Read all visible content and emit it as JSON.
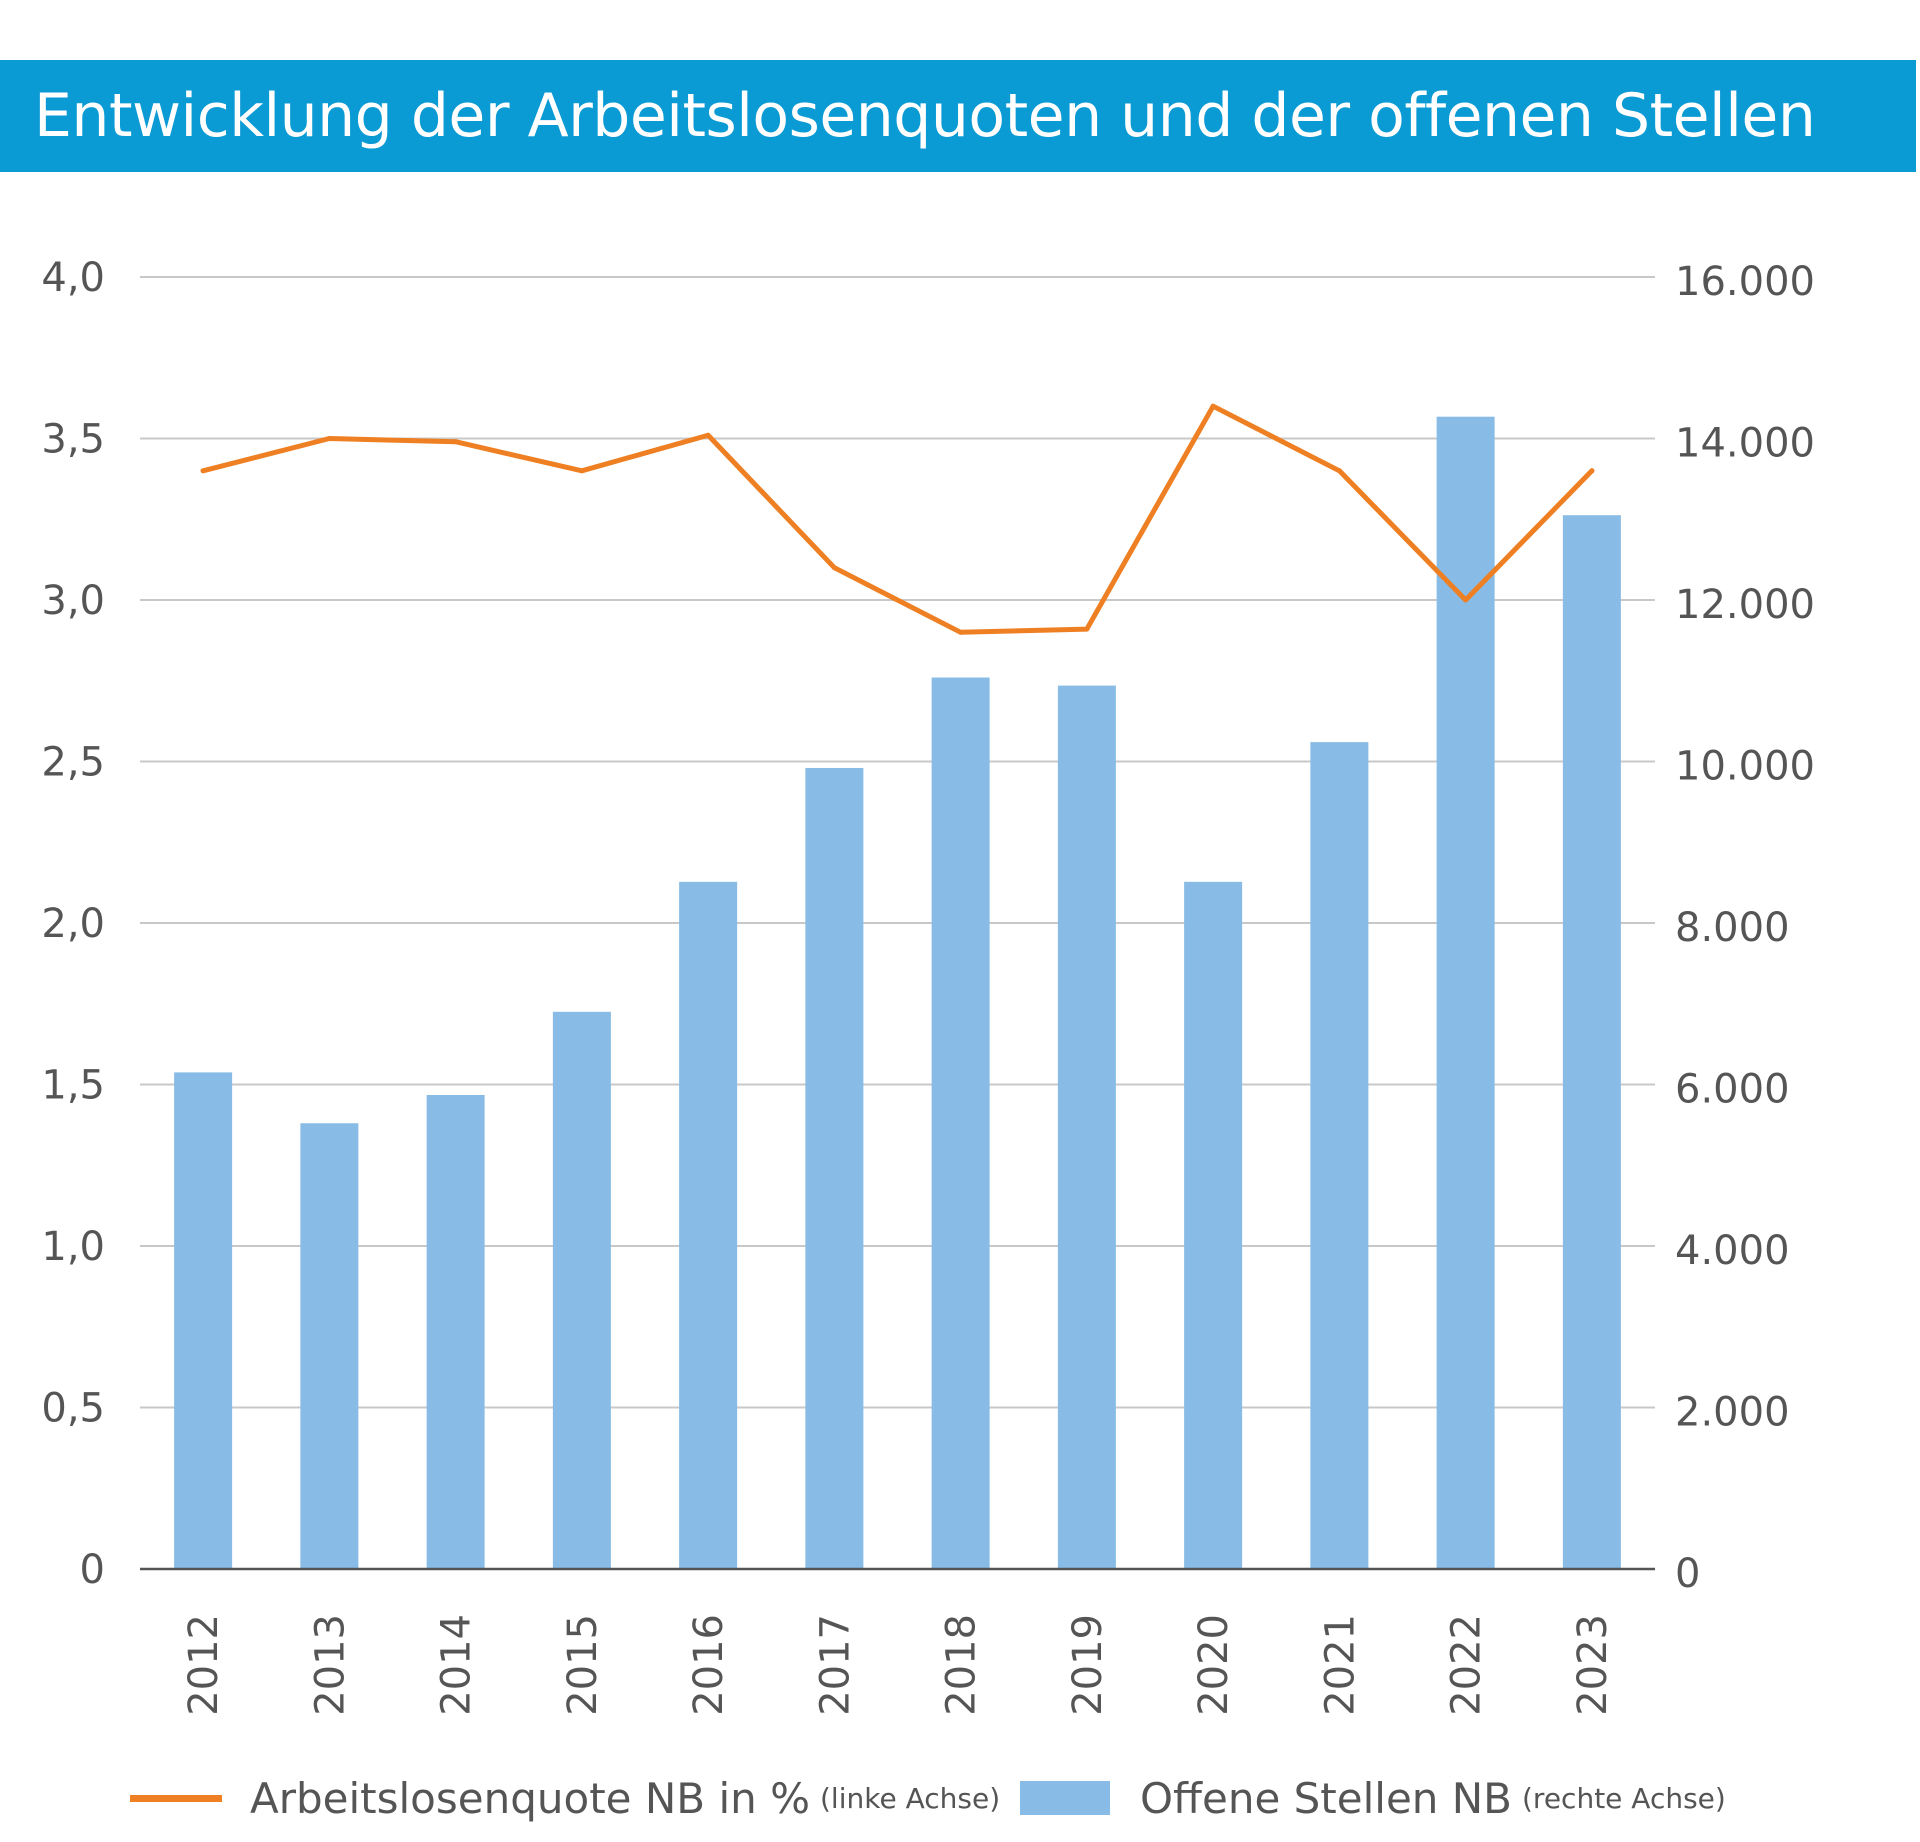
{
  "title": "Entwicklung der Arbeitslosenquoten und der offenen Stellen",
  "colors": {
    "header": "#0a9ad4",
    "line": "#ee7f22",
    "bars": "#88bce6",
    "grid": "#c8c8c8",
    "axis": "#555555"
  },
  "legend": {
    "line_label": "Arbeitslosenquote NB in %",
    "line_note": "(linke Achse)",
    "bar_label": "Offene Stellen NB",
    "bar_note": "(rechte Achse)"
  },
  "chart_data": {
    "type": "bar",
    "title": "Entwicklung der Arbeitslosenquoten und der offenen Stellen",
    "categories": [
      "2012",
      "2013",
      "2014",
      "2015",
      "2016",
      "2017",
      "2018",
      "2019",
      "2020",
      "2021",
      "2022",
      "2023"
    ],
    "series": [
      {
        "name": "Offene Stellen NB",
        "type": "bar",
        "axis": "right",
        "values": [
          6150,
          5520,
          5870,
          6900,
          8510,
          9920,
          11040,
          10940,
          8510,
          10240,
          14270,
          13050
        ]
      },
      {
        "name": "Arbeitslosenquote NB in %",
        "type": "line",
        "axis": "left",
        "values": [
          3.4,
          3.5,
          3.49,
          3.4,
          3.51,
          3.1,
          2.9,
          2.91,
          3.6,
          3.4,
          3.0,
          3.4
        ]
      }
    ],
    "left_axis": {
      "ylim": [
        0,
        4.0
      ],
      "ticks": [
        "0",
        "0,5",
        "1,0",
        "1,5",
        "2,0",
        "2,5",
        "3,0",
        "3,5",
        "4,0"
      ]
    },
    "right_axis": {
      "ylim": [
        0,
        16000
      ],
      "ticks": [
        "0",
        "2.000",
        "4.000",
        "6.000",
        "8.000",
        "10.000",
        "12.000",
        "14.000",
        "16.000"
      ]
    },
    "grid": true,
    "legend_position": "bottom"
  }
}
